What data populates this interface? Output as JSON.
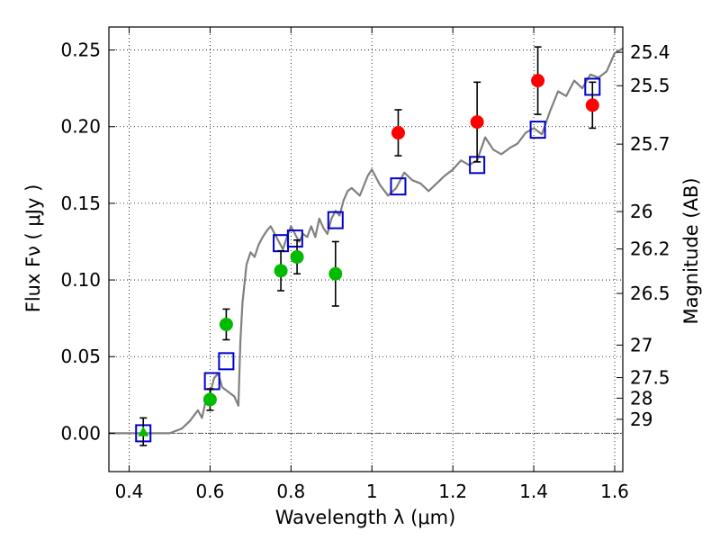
{
  "chart_data": {
    "type": "scatter",
    "xlabel": "Wavelength  λ (μm)",
    "ylabel": "Flux  Fν  ( μJy )",
    "y2label": "Magnitude (AB)",
    "xlim": [
      0.35,
      1.62
    ],
    "ylim": [
      -0.025,
      0.265
    ],
    "grid": true,
    "x_ticks": [
      {
        "value": 0.4,
        "label": "0.4"
      },
      {
        "value": 0.6,
        "label": "0.6"
      },
      {
        "value": 0.8,
        "label": "0.8"
      },
      {
        "value": 1.0,
        "label": "1"
      },
      {
        "value": 1.2,
        "label": "1.2"
      },
      {
        "value": 1.4,
        "label": "1.4"
      },
      {
        "value": 1.6,
        "label": "1.6"
      }
    ],
    "y_ticks": [
      {
        "value": 0.0,
        "label": "0.00"
      },
      {
        "value": 0.05,
        "label": "0.05"
      },
      {
        "value": 0.1,
        "label": "0.10"
      },
      {
        "value": 0.15,
        "label": "0.15"
      },
      {
        "value": 0.2,
        "label": "0.20"
      },
      {
        "value": 0.25,
        "label": "0.25"
      }
    ],
    "mag_ticks": [
      {
        "value": 0.2485,
        "label": "25.4"
      },
      {
        "value": 0.2267,
        "label": "25.5"
      },
      {
        "value": 0.1886,
        "label": "25.7"
      },
      {
        "value": 0.1446,
        "label": "26"
      },
      {
        "value": 0.1202,
        "label": "26.2"
      },
      {
        "value": 0.0912,
        "label": "26.5"
      },
      {
        "value": 0.0575,
        "label": "27"
      },
      {
        "value": 0.0363,
        "label": "27.5"
      },
      {
        "value": 0.0229,
        "label": "28"
      },
      {
        "value": 0.0091,
        "label": "29"
      }
    ],
    "zero_line": {
      "y": 0.0,
      "color": "#555555"
    },
    "series": [
      {
        "kind": "model_sed",
        "style": "line",
        "color": "#808080",
        "points": [
          [
            0.35,
            0.0
          ],
          [
            0.5,
            0.0
          ],
          [
            0.53,
            0.003
          ],
          [
            0.55,
            0.008
          ],
          [
            0.57,
            0.015
          ],
          [
            0.58,
            0.01
          ],
          [
            0.59,
            0.022
          ],
          [
            0.6,
            0.026
          ],
          [
            0.61,
            0.036
          ],
          [
            0.62,
            0.039
          ],
          [
            0.63,
            0.03
          ],
          [
            0.64,
            0.028
          ],
          [
            0.65,
            0.026
          ],
          [
            0.66,
            0.024
          ],
          [
            0.67,
            0.018
          ],
          [
            0.675,
            0.06
          ],
          [
            0.68,
            0.085
          ],
          [
            0.69,
            0.11
          ],
          [
            0.7,
            0.118
          ],
          [
            0.71,
            0.115
          ],
          [
            0.72,
            0.123
          ],
          [
            0.73,
            0.128
          ],
          [
            0.74,
            0.132
          ],
          [
            0.75,
            0.135
          ],
          [
            0.76,
            0.13
          ],
          [
            0.77,
            0.125
          ],
          [
            0.78,
            0.12
          ],
          [
            0.79,
            0.128
          ],
          [
            0.8,
            0.135
          ],
          [
            0.81,
            0.13
          ],
          [
            0.82,
            0.125
          ],
          [
            0.83,
            0.13
          ],
          [
            0.84,
            0.128
          ],
          [
            0.85,
            0.135
          ],
          [
            0.86,
            0.128
          ],
          [
            0.87,
            0.14
          ],
          [
            0.88,
            0.134
          ],
          [
            0.89,
            0.13
          ],
          [
            0.9,
            0.14
          ],
          [
            0.91,
            0.145
          ],
          [
            0.92,
            0.142
          ],
          [
            0.93,
            0.152
          ],
          [
            0.94,
            0.158
          ],
          [
            0.95,
            0.16
          ],
          [
            0.97,
            0.155
          ],
          [
            0.99,
            0.168
          ],
          [
            1.0,
            0.172
          ],
          [
            1.02,
            0.162
          ],
          [
            1.04,
            0.155
          ],
          [
            1.06,
            0.16
          ],
          [
            1.08,
            0.17
          ],
          [
            1.1,
            0.165
          ],
          [
            1.12,
            0.163
          ],
          [
            1.14,
            0.158
          ],
          [
            1.16,
            0.163
          ],
          [
            1.18,
            0.168
          ],
          [
            1.2,
            0.172
          ],
          [
            1.22,
            0.178
          ],
          [
            1.24,
            0.175
          ],
          [
            1.26,
            0.178
          ],
          [
            1.28,
            0.193
          ],
          [
            1.3,
            0.185
          ],
          [
            1.32,
            0.182
          ],
          [
            1.34,
            0.186
          ],
          [
            1.36,
            0.189
          ],
          [
            1.38,
            0.196
          ],
          [
            1.4,
            0.199
          ],
          [
            1.42,
            0.195
          ],
          [
            1.44,
            0.21
          ],
          [
            1.46,
            0.223
          ],
          [
            1.48,
            0.22
          ],
          [
            1.5,
            0.23
          ],
          [
            1.52,
            0.225
          ],
          [
            1.54,
            0.234
          ],
          [
            1.56,
            0.232
          ],
          [
            1.58,
            0.236
          ],
          [
            1.6,
            0.248
          ],
          [
            1.62,
            0.251
          ]
        ]
      },
      {
        "kind": "model_bandpass",
        "style": "open-square",
        "color": "#0000cc",
        "points": [
          [
            0.435,
            0.0
          ],
          [
            0.605,
            0.034
          ],
          [
            0.64,
            0.047
          ],
          [
            0.775,
            0.124
          ],
          [
            0.81,
            0.127
          ],
          [
            0.91,
            0.139
          ],
          [
            1.065,
            0.161
          ],
          [
            1.26,
            0.175
          ],
          [
            1.41,
            0.198
          ],
          [
            1.545,
            0.226
          ]
        ]
      },
      {
        "kind": "observed_optical",
        "style": "filled-circle",
        "color": "#00bb00",
        "points": [
          {
            "x": 0.6,
            "y": 0.022,
            "err": 0.007
          },
          {
            "x": 0.64,
            "y": 0.071,
            "err": 0.01
          },
          {
            "x": 0.775,
            "y": 0.106,
            "err": 0.013
          },
          {
            "x": 0.815,
            "y": 0.115,
            "err": 0.011
          },
          {
            "x": 0.91,
            "y": 0.104,
            "err": 0.021
          }
        ]
      },
      {
        "kind": "observed_optical_triangle",
        "style": "filled-triangle",
        "color": "#00bb00",
        "points": [
          {
            "x": 0.435,
            "y": 0.001,
            "err": 0.009
          }
        ]
      },
      {
        "kind": "observed_nir",
        "style": "filled-circle",
        "color": "#ff0000",
        "points": [
          {
            "x": 1.065,
            "y": 0.196,
            "err": 0.015
          },
          {
            "x": 1.26,
            "y": 0.203,
            "err": 0.026
          },
          {
            "x": 1.41,
            "y": 0.23,
            "err": 0.022
          },
          {
            "x": 1.545,
            "y": 0.214,
            "err": 0.015
          }
        ]
      }
    ]
  }
}
